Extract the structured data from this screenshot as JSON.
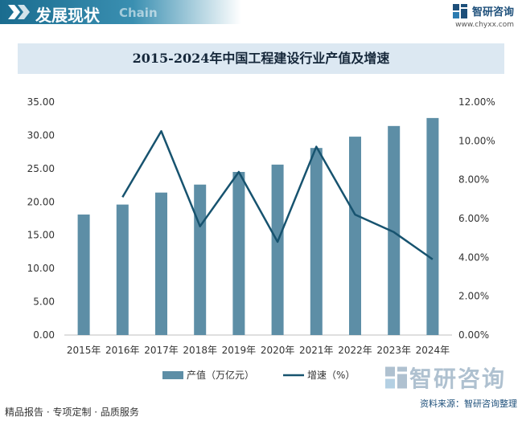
{
  "header": {
    "title": "发展现状",
    "subtitle_en": "Chain",
    "brand_name": "智研咨询",
    "brand_url": "www.chyxx.com"
  },
  "footer": {
    "left": "精品报告 · 专项定制 · 品质服务",
    "source": "资料来源：智研咨询整理",
    "watermark": "智研咨询"
  },
  "chart_data": {
    "type": "bar",
    "title": "2015-2024年中国工程建设行业产值及增速",
    "categories": [
      "2015年",
      "2016年",
      "2017年",
      "2018年",
      "2019年",
      "2020年",
      "2021年",
      "2022年",
      "2023年",
      "2024年"
    ],
    "series": [
      {
        "name": "产值（万亿元）",
        "type": "bar",
        "axis": "left",
        "color": "#5d8ea6",
        "values": [
          18.1,
          19.6,
          21.4,
          22.6,
          24.5,
          25.6,
          28.1,
          29.8,
          31.4,
          32.6
        ]
      },
      {
        "name": "增速（%）",
        "type": "line",
        "axis": "right",
        "color": "#17536f",
        "values": [
          null,
          7.1,
          10.5,
          5.6,
          8.4,
          4.8,
          9.7,
          6.2,
          5.3,
          3.9
        ]
      }
    ],
    "y_left": {
      "min": 0,
      "max": 35,
      "step": 5,
      "tick_labels": [
        "0.00",
        "5.00",
        "10.00",
        "15.00",
        "20.00",
        "25.00",
        "30.00",
        "35.00"
      ]
    },
    "y_right": {
      "min": 0,
      "max": 12,
      "step": 2,
      "tick_labels": [
        "0.00%",
        "2.00%",
        "4.00%",
        "6.00%",
        "8.00%",
        "10.00%",
        "12.00%"
      ]
    },
    "grid": false,
    "legend_position": "bottom"
  }
}
